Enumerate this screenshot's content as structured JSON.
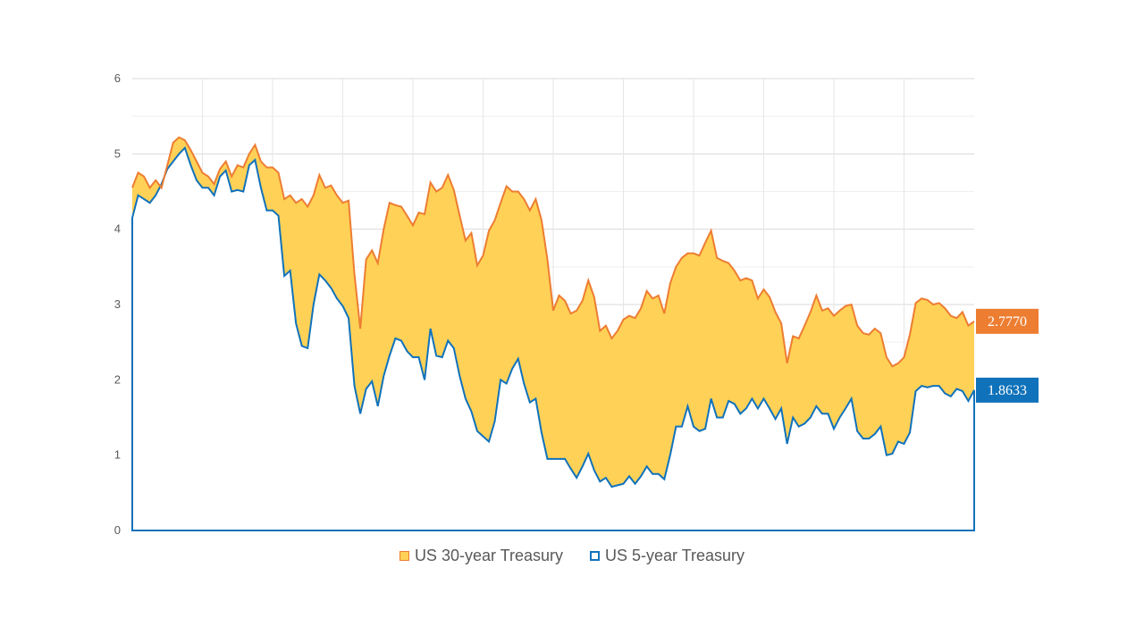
{
  "chart_data": {
    "type": "area",
    "ylim": [
      0,
      6
    ],
    "yticks": [
      "0",
      "1",
      "2",
      "3",
      "4",
      "5",
      "6"
    ],
    "grid": true,
    "legend_position": "bottom",
    "series": [
      {
        "name": "US 30-year Treasury",
        "line_color": "#ED7D31",
        "fill_color": "#FFD157",
        "end_label": "2.7770",
        "values": [
          4.55,
          4.75,
          4.7,
          4.55,
          4.65,
          4.55,
          4.85,
          5.15,
          5.22,
          5.18,
          5.05,
          4.9,
          4.75,
          4.7,
          4.6,
          4.8,
          4.9,
          4.7,
          4.85,
          4.82,
          5.0,
          5.12,
          4.9,
          4.82,
          4.82,
          4.75,
          4.4,
          4.45,
          4.35,
          4.4,
          4.3,
          4.45,
          4.72,
          4.55,
          4.58,
          4.45,
          4.35,
          4.38,
          3.4,
          2.68,
          3.6,
          3.72,
          3.55,
          4.0,
          4.35,
          4.32,
          4.3,
          4.18,
          4.05,
          4.22,
          4.2,
          4.62,
          4.5,
          4.55,
          4.72,
          4.52,
          4.18,
          3.85,
          3.95,
          3.52,
          3.65,
          3.98,
          4.12,
          4.35,
          4.57,
          4.5,
          4.5,
          4.4,
          4.25,
          4.4,
          4.12,
          3.6,
          2.92,
          3.12,
          3.05,
          2.88,
          2.92,
          3.05,
          3.32,
          3.1,
          2.65,
          2.72,
          2.55,
          2.65,
          2.8,
          2.85,
          2.82,
          2.95,
          3.18,
          3.08,
          3.12,
          2.88,
          3.28,
          3.5,
          3.62,
          3.68,
          3.68,
          3.65,
          3.82,
          3.98,
          3.62,
          3.58,
          3.55,
          3.45,
          3.32,
          3.35,
          3.32,
          3.08,
          3.2,
          3.1,
          2.9,
          2.75,
          2.22,
          2.58,
          2.55,
          2.72,
          2.9,
          3.12,
          2.92,
          2.95,
          2.85,
          2.92,
          2.98,
          3.0,
          2.72,
          2.62,
          2.6,
          2.68,
          2.62,
          2.3,
          2.18,
          2.22,
          2.3,
          2.6,
          3.02,
          3.08,
          3.06,
          3.0,
          3.02,
          2.95,
          2.85,
          2.82,
          2.9,
          2.72,
          2.777
        ]
      },
      {
        "name": "US 5-year Treasury",
        "line_color": "#1072BA",
        "end_label": "1.8633",
        "values": [
          4.15,
          4.45,
          4.4,
          4.35,
          4.45,
          4.6,
          4.8,
          4.9,
          5.0,
          5.08,
          4.85,
          4.65,
          4.55,
          4.55,
          4.45,
          4.7,
          4.78,
          4.5,
          4.52,
          4.5,
          4.85,
          4.92,
          4.55,
          4.25,
          4.25,
          4.18,
          3.38,
          3.45,
          2.75,
          2.45,
          2.42,
          3.0,
          3.4,
          3.32,
          3.22,
          3.08,
          2.98,
          2.82,
          1.92,
          1.55,
          1.88,
          1.98,
          1.65,
          2.05,
          2.32,
          2.55,
          2.52,
          2.38,
          2.3,
          2.3,
          2.0,
          2.68,
          2.32,
          2.3,
          2.52,
          2.42,
          2.05,
          1.75,
          1.58,
          1.32,
          1.25,
          1.18,
          1.45,
          2.0,
          1.95,
          2.15,
          2.28,
          1.95,
          1.7,
          1.75,
          1.3,
          0.95,
          0.95,
          0.95,
          0.95,
          0.82,
          0.7,
          0.85,
          1.02,
          0.8,
          0.65,
          0.7,
          0.58,
          0.6,
          0.62,
          0.72,
          0.62,
          0.72,
          0.85,
          0.75,
          0.75,
          0.68,
          1.0,
          1.38,
          1.38,
          1.65,
          1.38,
          1.32,
          1.35,
          1.75,
          1.5,
          1.5,
          1.72,
          1.68,
          1.55,
          1.62,
          1.75,
          1.62,
          1.75,
          1.62,
          1.48,
          1.62,
          1.15,
          1.5,
          1.38,
          1.42,
          1.5,
          1.65,
          1.55,
          1.55,
          1.35,
          1.5,
          1.62,
          1.75,
          1.32,
          1.22,
          1.22,
          1.28,
          1.38,
          1.0,
          1.02,
          1.18,
          1.15,
          1.3,
          1.85,
          1.92,
          1.9,
          1.92,
          1.92,
          1.82,
          1.78,
          1.88,
          1.85,
          1.72,
          1.8633
        ]
      }
    ]
  }
}
